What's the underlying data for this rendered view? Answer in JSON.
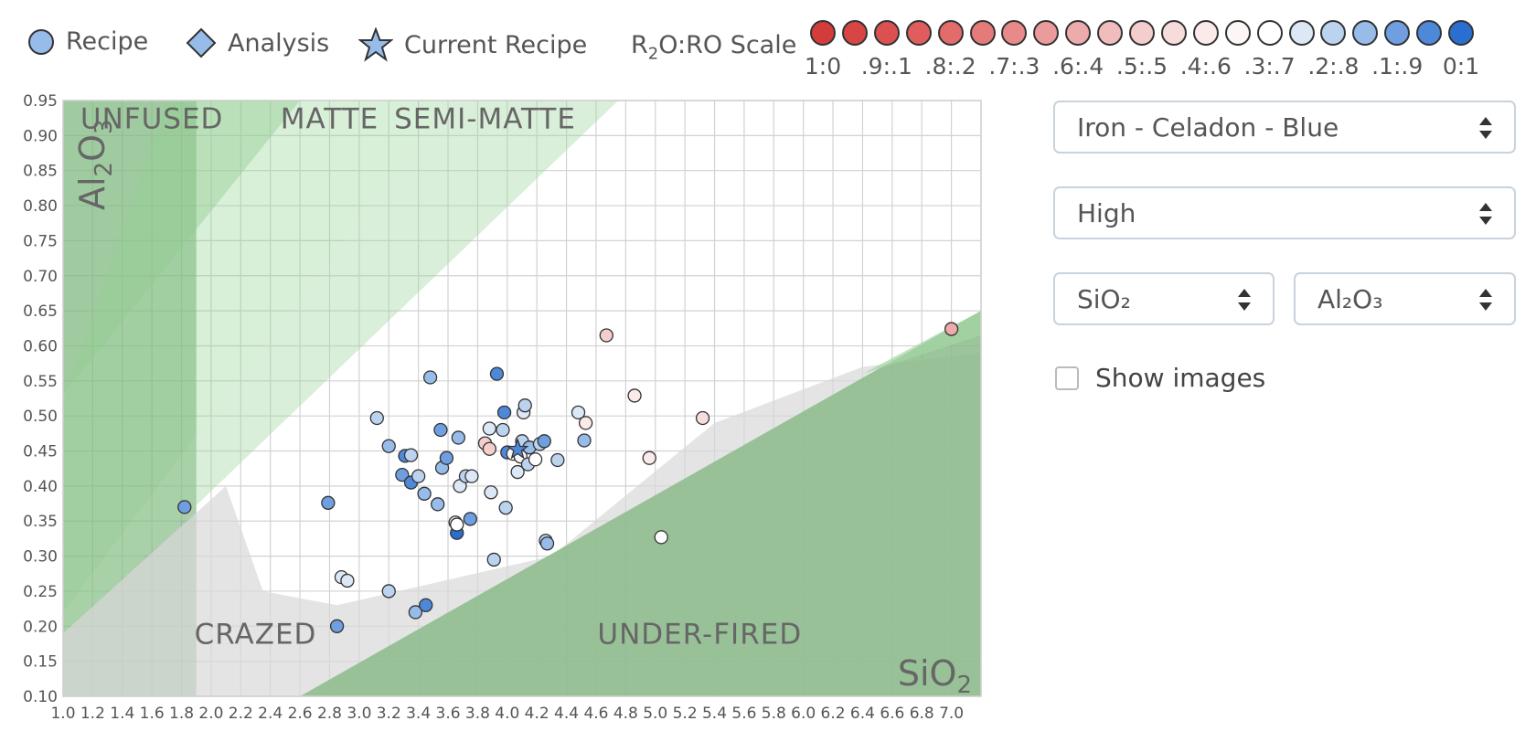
{
  "legend": {
    "recipe_label": "Recipe",
    "analysis_label": "Analysis",
    "current_label": "Current Recipe",
    "scale_label": "R2O:RO Scale",
    "scale": [
      {
        "label": "1:0",
        "color": "#d43b3b"
      },
      {
        "label": "",
        "color": "#d84545"
      },
      {
        "label": ".9:.1",
        "color": "#db5050"
      },
      {
        "label": "",
        "color": "#df5d5d"
      },
      {
        "label": ".8:.2",
        "color": "#e26b6b"
      },
      {
        "label": "",
        "color": "#e57a7a"
      },
      {
        "label": ".7:.3",
        "color": "#e88a8a"
      },
      {
        "label": "",
        "color": "#eb9b9b"
      },
      {
        "label": ".6:.4",
        "color": "#eeabab"
      },
      {
        "label": "",
        "color": "#f1bcbc"
      },
      {
        "label": ".5:.5",
        "color": "#f4cdcd"
      },
      {
        "label": "",
        "color": "#f7dcdc"
      },
      {
        "label": ".4:.6",
        "color": "#faeaea"
      },
      {
        "label": "",
        "color": "#fdf6f6"
      },
      {
        "label": ".3:.7",
        "color": "#ffffff"
      },
      {
        "label": "",
        "color": "#dde8f6"
      },
      {
        "label": ".2:.8",
        "color": "#bcd3f0"
      },
      {
        "label": "",
        "color": "#97bcea"
      },
      {
        "label": ".1:.9",
        "color": "#6f9fe0"
      },
      {
        "label": "",
        "color": "#4d88d9"
      },
      {
        "label": "0:1",
        "color": "#2a6fd0"
      }
    ]
  },
  "chart_data": {
    "type": "scatter",
    "xlabel": "SiO2",
    "ylabel": "Al2O3",
    "xlim": [
      1.0,
      7.2
    ],
    "ylim": [
      0.1,
      0.95
    ],
    "x_ticks": [
      1.0,
      1.2,
      1.4,
      1.6,
      1.8,
      2.0,
      2.2,
      2.4,
      2.6,
      2.8,
      3.0,
      3.2,
      3.4,
      3.6,
      3.8,
      4.0,
      4.2,
      4.4,
      4.6,
      4.8,
      5.0,
      5.2,
      5.4,
      5.6,
      5.8,
      6.0,
      6.2,
      6.4,
      6.6,
      6.8,
      7.0
    ],
    "x_tick_labels": [
      "1.0",
      "1.2",
      "1.4",
      "1.6",
      "1.8",
      "2.0",
      "2.2",
      "2.4",
      "2.6",
      "2.8",
      "3.0",
      "3.2",
      "3.4",
      "3.6",
      "3.8",
      "4.0",
      "4.2",
      "4.4",
      "4.6",
      "4.8",
      "5.0",
      "5.2",
      "5.4",
      "5.6",
      "5.8",
      "6.0",
      "6.2",
      "6.4",
      "6.6",
      "6.8",
      "7.0"
    ],
    "y_ticks": [
      0.1,
      0.15,
      0.2,
      0.25,
      0.3,
      0.35,
      0.4,
      0.45,
      0.5,
      0.55,
      0.6,
      0.65,
      0.7,
      0.75,
      0.8,
      0.85,
      0.9,
      0.95
    ],
    "y_tick_labels": [
      "0.10",
      "0.15",
      "0.20",
      "0.25",
      "0.30",
      "0.35",
      "0.40",
      "0.45",
      "0.50",
      "0.55",
      "0.60",
      "0.65",
      "0.70",
      "0.75",
      "0.80",
      "0.85",
      "0.90",
      "0.95"
    ],
    "grid": true,
    "region_labels": [
      {
        "text": "UNFUSED",
        "x": 1.6,
        "y": 0.91
      },
      {
        "text": "MATTE",
        "x": 2.8,
        "y": 0.91
      },
      {
        "text": "SEMI-MATTE",
        "x": 3.85,
        "y": 0.91
      },
      {
        "text": "CRAZED",
        "x": 2.3,
        "y": 0.175
      },
      {
        "text": "UNDER-FIRED",
        "x": 5.3,
        "y": 0.175
      }
    ],
    "regions": [
      {
        "name": "unfused-left",
        "color": "#6aa56a",
        "opacity": 0.55,
        "points": [
          [
            1.0,
            0.95
          ],
          [
            1.9,
            0.95
          ],
          [
            1.9,
            0.1
          ],
          [
            1.0,
            0.1
          ]
        ]
      },
      {
        "name": "unfused-band",
        "color": "#8cc88c",
        "opacity": 0.4,
        "points": [
          [
            1.0,
            0.53
          ],
          [
            2.6,
            0.95
          ],
          [
            1.7,
            0.95
          ],
          [
            1.0,
            0.95
          ]
        ]
      },
      {
        "name": "matte",
        "color": "#8fd08f",
        "opacity": 0.35,
        "points": [
          [
            1.0,
            0.22
          ],
          [
            3.6,
            0.95
          ],
          [
            1.7,
            0.95
          ],
          [
            1.0,
            0.52
          ]
        ]
      },
      {
        "name": "semi-matte",
        "color": "#9fd89f",
        "opacity": 0.4,
        "points": [
          [
            1.0,
            0.19
          ],
          [
            4.75,
            0.95
          ],
          [
            3.6,
            0.95
          ],
          [
            1.0,
            0.22
          ]
        ]
      },
      {
        "name": "crazed",
        "color": "#d8d8d8",
        "opacity": 0.7,
        "points": [
          [
            1.0,
            0.19
          ],
          [
            2.1,
            0.4
          ],
          [
            2.35,
            0.25
          ],
          [
            2.85,
            0.23
          ],
          [
            4.3,
            0.3
          ],
          [
            5.4,
            0.49
          ],
          [
            6.4,
            0.57
          ],
          [
            7.2,
            0.59
          ],
          [
            7.2,
            0.1
          ],
          [
            1.0,
            0.1
          ]
        ]
      },
      {
        "name": "under-fired",
        "color": "#8bbb8b",
        "opacity": 0.85,
        "points": [
          [
            2.6,
            0.1
          ],
          [
            7.2,
            0.65
          ],
          [
            7.2,
            0.1
          ]
        ]
      },
      {
        "name": "under-fired-band",
        "color": "#a4d4a4",
        "opacity": 0.7,
        "points": [
          [
            6.4,
            0.56
          ],
          [
            7.2,
            0.65
          ],
          [
            7.2,
            0.615
          ]
        ]
      }
    ],
    "series": [
      {
        "name": "Recipe",
        "points": [
          {
            "x": 1.82,
            "y": 0.37,
            "c": "#6f9fe0"
          },
          {
            "x": 2.79,
            "y": 0.376,
            "c": "#6f9fe0"
          },
          {
            "x": 2.85,
            "y": 0.2,
            "c": "#6f9fe0"
          },
          {
            "x": 2.88,
            "y": 0.27,
            "c": "#dde8f6"
          },
          {
            "x": 2.92,
            "y": 0.265,
            "c": "#dde8f6"
          },
          {
            "x": 3.12,
            "y": 0.497,
            "c": "#bcd3f0"
          },
          {
            "x": 3.2,
            "y": 0.25,
            "c": "#bcd3f0"
          },
          {
            "x": 3.2,
            "y": 0.457,
            "c": "#97bcea"
          },
          {
            "x": 3.29,
            "y": 0.416,
            "c": "#6f9fe0"
          },
          {
            "x": 3.31,
            "y": 0.443,
            "c": "#4d88d9"
          },
          {
            "x": 3.35,
            "y": 0.444,
            "c": "#bcd3f0"
          },
          {
            "x": 3.35,
            "y": 0.405,
            "c": "#4d88d9"
          },
          {
            "x": 3.38,
            "y": 0.22,
            "c": "#97bcea"
          },
          {
            "x": 3.4,
            "y": 0.414,
            "c": "#bcd3f0"
          },
          {
            "x": 3.44,
            "y": 0.389,
            "c": "#97bcea"
          },
          {
            "x": 3.45,
            "y": 0.23,
            "c": "#4d88d9"
          },
          {
            "x": 3.48,
            "y": 0.555,
            "c": "#97bcea"
          },
          {
            "x": 3.53,
            "y": 0.374,
            "c": "#97bcea"
          },
          {
            "x": 3.55,
            "y": 0.48,
            "c": "#6f9fe0"
          },
          {
            "x": 3.56,
            "y": 0.426,
            "c": "#97bcea"
          },
          {
            "x": 3.59,
            "y": 0.44,
            "c": "#6f9fe0"
          },
          {
            "x": 3.65,
            "y": 0.348,
            "c": "#dde8f6"
          },
          {
            "x": 3.66,
            "y": 0.333,
            "c": "#2a6fd0"
          },
          {
            "x": 3.66,
            "y": 0.345,
            "c": "#ffffff"
          },
          {
            "x": 3.67,
            "y": 0.469,
            "c": "#97bcea"
          },
          {
            "x": 3.68,
            "y": 0.4,
            "c": "#dde8f6"
          },
          {
            "x": 3.72,
            "y": 0.414,
            "c": "#bcd3f0"
          },
          {
            "x": 3.75,
            "y": 0.353,
            "c": "#6f9fe0"
          },
          {
            "x": 3.76,
            "y": 0.414,
            "c": "#dde8f6"
          },
          {
            "x": 3.85,
            "y": 0.461,
            "c": "#f4cdcd"
          },
          {
            "x": 3.88,
            "y": 0.482,
            "c": "#dde8f6"
          },
          {
            "x": 3.88,
            "y": 0.453,
            "c": "#f4cdcd"
          },
          {
            "x": 3.89,
            "y": 0.391,
            "c": "#dde8f6"
          },
          {
            "x": 3.91,
            "y": 0.295,
            "c": "#bcd3f0"
          },
          {
            "x": 3.93,
            "y": 0.56,
            "c": "#4d88d9"
          },
          {
            "x": 3.97,
            "y": 0.48,
            "c": "#bcd3f0"
          },
          {
            "x": 3.98,
            "y": 0.505,
            "c": "#4d88d9"
          },
          {
            "x": 3.99,
            "y": 0.369,
            "c": "#bcd3f0"
          },
          {
            "x": 4.0,
            "y": 0.448,
            "c": "#4d88d9"
          },
          {
            "x": 4.04,
            "y": 0.446,
            "c": "#fdf6f6"
          },
          {
            "x": 4.07,
            "y": 0.42,
            "c": "#dde8f6"
          },
          {
            "x": 4.09,
            "y": 0.442,
            "c": "#fdf6f6"
          },
          {
            "x": 4.1,
            "y": 0.464,
            "c": "#bcd3f0"
          },
          {
            "x": 4.11,
            "y": 0.505,
            "c": "#dde8f6"
          },
          {
            "x": 4.12,
            "y": 0.515,
            "c": "#bcd3f0"
          },
          {
            "x": 4.14,
            "y": 0.431,
            "c": "#bcd3f0"
          },
          {
            "x": 4.15,
            "y": 0.455,
            "c": "#97bcea"
          },
          {
            "x": 4.19,
            "y": 0.438,
            "c": "#ffffff"
          },
          {
            "x": 4.22,
            "y": 0.46,
            "c": "#bcd3f0"
          },
          {
            "x": 4.25,
            "y": 0.464,
            "c": "#6f9fe0"
          },
          {
            "x": 4.26,
            "y": 0.322,
            "c": "#bcd3f0"
          },
          {
            "x": 4.27,
            "y": 0.318,
            "c": "#97bcea"
          },
          {
            "x": 4.34,
            "y": 0.437,
            "c": "#bcd3f0"
          },
          {
            "x": 4.48,
            "y": 0.505,
            "c": "#dde8f6"
          },
          {
            "x": 4.52,
            "y": 0.465,
            "c": "#97bcea"
          },
          {
            "x": 4.53,
            "y": 0.49,
            "c": "#faeaea"
          },
          {
            "x": 4.67,
            "y": 0.615,
            "c": "#f4cdcd"
          },
          {
            "x": 4.86,
            "y": 0.529,
            "c": "#faeaea"
          },
          {
            "x": 4.96,
            "y": 0.44,
            "c": "#faeaea"
          },
          {
            "x": 5.04,
            "y": 0.327,
            "c": "#ffffff"
          },
          {
            "x": 5.32,
            "y": 0.497,
            "c": "#f7dcdc"
          },
          {
            "x": 7.0,
            "y": 0.624,
            "c": "#eeabab"
          }
        ]
      },
      {
        "name": "Current Recipe",
        "points": [
          {
            "x": 4.07,
            "y": 0.452,
            "c": "#4d88d9"
          }
        ]
      }
    ]
  },
  "controls": {
    "recipe_select": "Iron - Celadon - Blue",
    "temperature_select": "High",
    "x_axis_select": "SiO₂",
    "y_axis_select": "Al₂O₃",
    "show_images_label": "Show images",
    "show_images_checked": false
  }
}
